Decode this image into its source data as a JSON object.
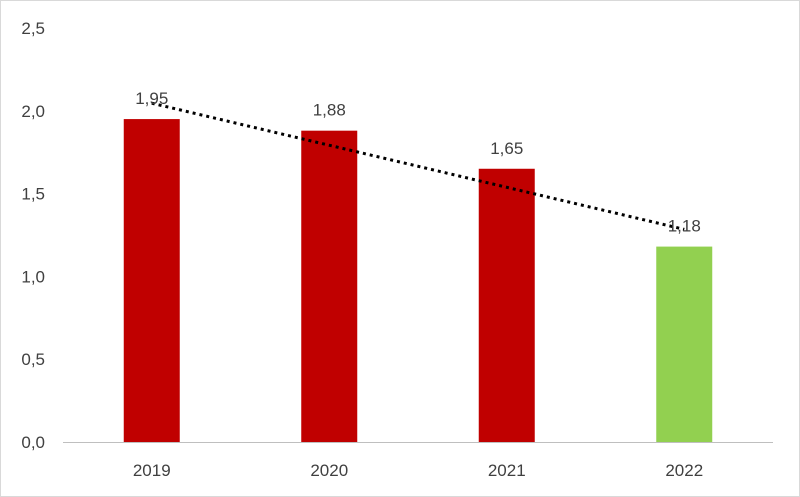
{
  "chart_data": {
    "type": "bar",
    "title": "",
    "xlabel": "",
    "ylabel": "",
    "categories": [
      "2019",
      "2020",
      "2021",
      "2022"
    ],
    "values": [
      1.95,
      1.88,
      1.65,
      1.18
    ],
    "data_labels": [
      "1,95",
      "1,88",
      "1,65",
      "1,18"
    ],
    "bar_colors": [
      "#c00000",
      "#c00000",
      "#c00000",
      "#92d050"
    ],
    "ylim": [
      0,
      2.5
    ],
    "yticks": [
      0,
      0.5,
      1.0,
      1.5,
      2.0,
      2.5
    ],
    "ytick_labels": [
      "0,0",
      "0,5",
      "1,0",
      "1,5",
      "2,0",
      "2,5"
    ],
    "trendline": {
      "type": "linear",
      "style": "dotted",
      "color": "#000000"
    },
    "grid": false,
    "legend": "none",
    "text_color": "#404040",
    "axis_color": "#bfbfbf"
  }
}
